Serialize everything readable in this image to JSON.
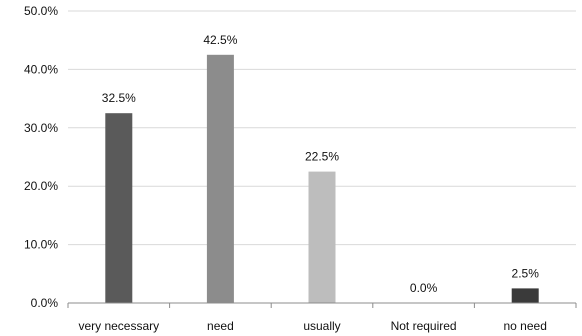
{
  "chart_data": {
    "type": "bar",
    "categories": [
      "very necessary",
      "need",
      "usually",
      "Not required",
      "no need"
    ],
    "values": [
      32.5,
      42.5,
      22.5,
      0.0,
      2.5
    ],
    "value_labels": [
      "32.5%",
      "42.5%",
      "22.5%",
      "0.0%",
      "2.5%"
    ],
    "bar_colors": [
      "#5a5a5a",
      "#8c8c8c",
      "#bdbdbd",
      "#ffffff",
      "#3a3a3a"
    ],
    "ylim": [
      0,
      50
    ],
    "yticks": [
      0,
      10,
      20,
      30,
      40,
      50
    ],
    "ytick_labels": [
      "0.0%",
      "10.0%",
      "20.0%",
      "30.0%",
      "40.0%",
      "50.0%"
    ],
    "title": "",
    "xlabel": "",
    "ylabel": "",
    "grid": true,
    "legend": false
  }
}
